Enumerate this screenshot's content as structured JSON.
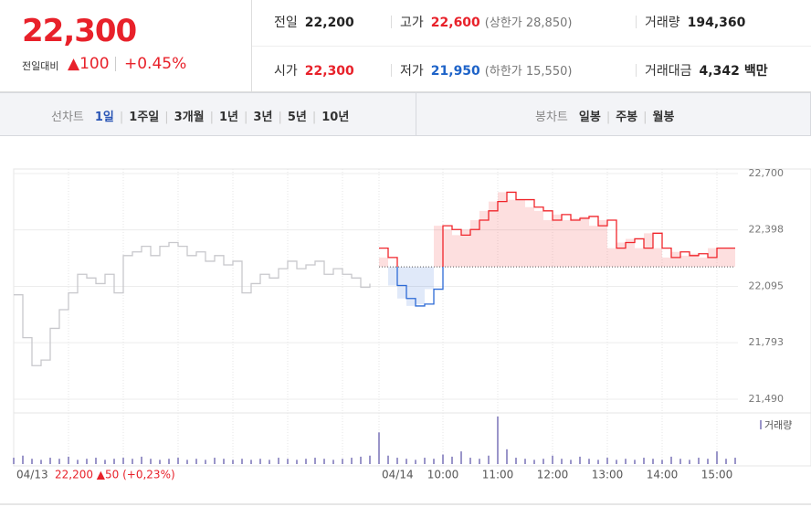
{
  "header": {
    "price": "22,300",
    "change_label": "전일대비",
    "change": "▲100",
    "change_pct": "+0.45%",
    "stats": [
      {
        "label": "전일",
        "value": "22,200"
      },
      {
        "label": "고가",
        "value": "22,600",
        "sub": "(상한가 28,850)"
      },
      {
        "label": "거래량",
        "value": "194,360"
      },
      {
        "label": "시가",
        "value": "22,300"
      },
      {
        "label": "저가",
        "value": "21,950",
        "sub": "(하한가 15,550)"
      },
      {
        "label": "거래대금",
        "value": "4,342",
        "sub": "백만"
      }
    ]
  },
  "toolbar": {
    "line_label": "선차트",
    "line_options": [
      "1일",
      "1주일",
      "3개월",
      "1년",
      "3년",
      "5년",
      "10년"
    ],
    "candle_label": "봉차트",
    "candle_options": [
      "일봉",
      "주봉",
      "월봉"
    ]
  },
  "chart_data": {
    "type": "line",
    "categories": [
      "04/13",
      null,
      null,
      null,
      null,
      null,
      null,
      null,
      null,
      null,
      null,
      null,
      null,
      null,
      null,
      null,
      null,
      null,
      null,
      null,
      null,
      null,
      null,
      null,
      null,
      null,
      null,
      null,
      null,
      null,
      null,
      null,
      null,
      null,
      null,
      null,
      null,
      null,
      null,
      null,
      "04/14",
      null,
      null,
      null,
      null,
      null,
      null,
      "10:00",
      null,
      null,
      null,
      null,
      null,
      "11:00",
      null,
      null,
      null,
      null,
      null,
      "12:00",
      null,
      null,
      null,
      null,
      null,
      "13:00",
      null,
      null,
      null,
      null,
      null,
      "14:00",
      null,
      null,
      null,
      null,
      null,
      "15:00",
      null,
      null
    ],
    "series": [
      {
        "name": "04/13",
        "color": "#c8c8cc",
        "values": [
          22050,
          21820,
          21670,
          21700,
          21870,
          21970,
          22060,
          22160,
          22140,
          22110,
          22160,
          22060,
          22260,
          22280,
          22310,
          22260,
          22310,
          22330,
          22310,
          22260,
          22280,
          22230,
          22260,
          22210,
          22230,
          22060,
          22110,
          22160,
          22140,
          22190,
          22230,
          22190,
          22210,
          22230,
          22160,
          22190,
          22160,
          22140,
          22090,
          22110,
          null,
          null,
          null,
          null,
          null,
          null,
          null,
          null,
          null,
          null,
          null,
          null,
          null,
          null,
          null,
          null,
          null,
          null,
          null,
          null,
          null,
          null,
          null,
          null,
          null,
          null,
          null,
          null,
          null,
          null,
          null,
          null,
          null,
          null,
          null,
          null,
          null,
          null,
          null,
          null
        ]
      },
      {
        "name": "04/14",
        "color": "#f0252b",
        "down_color": "#2c6ad6",
        "values": [
          null,
          null,
          null,
          null,
          null,
          null,
          null,
          null,
          null,
          null,
          null,
          null,
          null,
          null,
          null,
          null,
          null,
          null,
          null,
          null,
          null,
          null,
          null,
          null,
          null,
          null,
          null,
          null,
          null,
          null,
          null,
          null,
          null,
          null,
          null,
          null,
          null,
          null,
          null,
          null,
          22300,
          22250,
          22100,
          22030,
          21990,
          22000,
          22080,
          22420,
          22400,
          22370,
          22400,
          22450,
          22500,
          22550,
          22600,
          22560,
          22560,
          22520,
          22500,
          22450,
          22480,
          22450,
          22460,
          22470,
          22420,
          22450,
          22300,
          22330,
          22350,
          22300,
          22380,
          22300,
          22250,
          22280,
          22260,
          22270,
          22250,
          22300,
          22300,
          22300
        ]
      }
    ],
    "baseline": 22200,
    "volume": {
      "name": "거래량",
      "color": "#9a95c9",
      "values": [
        6,
        8,
        5,
        4,
        6,
        5,
        7,
        4,
        5,
        6,
        4,
        5,
        6,
        5,
        7,
        5,
        4,
        5,
        6,
        4,
        5,
        4,
        6,
        5,
        4,
        5,
        4,
        5,
        4,
        6,
        5,
        4,
        5,
        6,
        5,
        4,
        5,
        6,
        7,
        8,
        30,
        8,
        6,
        5,
        4,
        6,
        5,
        9,
        7,
        12,
        6,
        5,
        8,
        45,
        14,
        6,
        5,
        4,
        5,
        8,
        5,
        4,
        7,
        5,
        4,
        6,
        4,
        5,
        4,
        6,
        5,
        4,
        7,
        5,
        4,
        6,
        5,
        12,
        5,
        6
      ]
    },
    "ylim": [
      21490,
      22700
    ],
    "yticks": [
      {
        "value": 21490,
        "label": "21,490"
      },
      {
        "value": 21793,
        "label": "21,793"
      },
      {
        "value": 22095,
        "label": "22,095"
      },
      {
        "value": 22398,
        "label": "22,398"
      },
      {
        "value": 22700,
        "label": "22,700"
      }
    ],
    "annotation": "22,200 ▲50 (+0,23%)"
  }
}
